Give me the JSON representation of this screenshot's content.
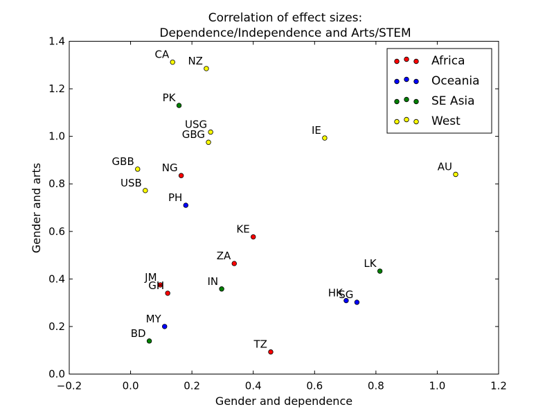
{
  "chart_data": {
    "type": "scatter",
    "title_lines": [
      "Correlation of effect sizes:",
      "Dependence/Independence and Arts/STEM"
    ],
    "xlabel": "Gender and dependence",
    "ylabel": "Gender and arts",
    "xlim": [
      -0.2,
      1.2
    ],
    "ylim": [
      0.0,
      1.4
    ],
    "x_ticks": [
      -0.2,
      0.0,
      0.2,
      0.4,
      0.6,
      0.8,
      1.0,
      1.2
    ],
    "x_tick_labels": [
      "−0.2",
      "0.0",
      "0.2",
      "0.4",
      "0.6",
      "0.8",
      "1.0",
      "1.2"
    ],
    "y_ticks": [
      0.0,
      0.2,
      0.4,
      0.6,
      0.8,
      1.0,
      1.2,
      1.4
    ],
    "y_tick_labels": [
      "0.0",
      "0.2",
      "0.4",
      "0.6",
      "0.8",
      "1.0",
      "1.2",
      "1.4"
    ],
    "grid": false,
    "legend_position": "top-right",
    "series": [
      {
        "name": "Africa",
        "color": "#ff0000",
        "points": [
          {
            "label": "NG",
            "x": 0.165,
            "y": 0.835
          },
          {
            "label": "KE",
            "x": 0.4,
            "y": 0.577
          },
          {
            "label": "ZA",
            "x": 0.338,
            "y": 0.465
          },
          {
            "label": "JM",
            "x": 0.097,
            "y": 0.375
          },
          {
            "label": "GH",
            "x": 0.121,
            "y": 0.34
          },
          {
            "label": "TZ",
            "x": 0.457,
            "y": 0.093
          }
        ]
      },
      {
        "name": "Oceania",
        "color": "#0000ff",
        "points": [
          {
            "label": "PH",
            "x": 0.18,
            "y": 0.71
          },
          {
            "label": "HK",
            "x": 0.703,
            "y": 0.309
          },
          {
            "label": "SG",
            "x": 0.738,
            "y": 0.302
          },
          {
            "label": "MY",
            "x": 0.111,
            "y": 0.2
          }
        ]
      },
      {
        "name": "SE Asia",
        "color": "#008000",
        "points": [
          {
            "label": "PK",
            "x": 0.158,
            "y": 1.13
          },
          {
            "label": "LK",
            "x": 0.813,
            "y": 0.433
          },
          {
            "label": "IN",
            "x": 0.297,
            "y": 0.358
          },
          {
            "label": "BD",
            "x": 0.061,
            "y": 0.139
          }
        ]
      },
      {
        "name": "West",
        "color": "#ffff00",
        "points": [
          {
            "label": "CA",
            "x": 0.137,
            "y": 1.312
          },
          {
            "label": "NZ",
            "x": 0.247,
            "y": 1.285
          },
          {
            "label": "USG",
            "x": 0.261,
            "y": 1.018
          },
          {
            "label": "GBG",
            "x": 0.254,
            "y": 0.975
          },
          {
            "label": "IE",
            "x": 0.633,
            "y": 0.993
          },
          {
            "label": "GBB",
            "x": 0.023,
            "y": 0.862
          },
          {
            "label": "USB",
            "x": 0.048,
            "y": 0.772
          },
          {
            "label": "AU",
            "x": 1.06,
            "y": 0.84
          }
        ]
      }
    ]
  }
}
